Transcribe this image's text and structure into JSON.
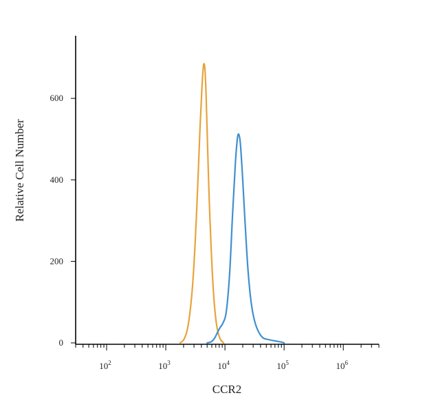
{
  "chart_data": {
    "type": "line",
    "title": "",
    "xlabel": "CCR2",
    "ylabel": "Relative Cell Number",
    "x_scale": "log",
    "xlim": [
      30,
      4000000
    ],
    "ylim": [
      0,
      720
    ],
    "x_ticks": [
      {
        "value": 100,
        "base": "10",
        "exp": "2"
      },
      {
        "value": 1000,
        "base": "10",
        "exp": "3"
      },
      {
        "value": 10000,
        "base": "10",
        "exp": "4"
      },
      {
        "value": 100000,
        "base": "10",
        "exp": "5"
      },
      {
        "value": 1000000,
        "base": "10",
        "exp": "6"
      }
    ],
    "y_ticks": [
      {
        "value": 0,
        "label": "0"
      },
      {
        "value": 200,
        "label": "200"
      },
      {
        "value": 400,
        "label": "400"
      },
      {
        "value": 600,
        "label": "600"
      }
    ],
    "grid": false,
    "legend": "none",
    "series": [
      {
        "color": "#e8a33c",
        "x": [
          1750,
          2050,
          2400,
          2800,
          3150,
          3500,
          3800,
          4100,
          4300,
          4450,
          4600,
          4800,
          5050,
          5400,
          5900,
          6500,
          7300,
          8300,
          9500
        ],
        "y": [
          0,
          10,
          45,
          130,
          250,
          400,
          530,
          630,
          675,
          685,
          670,
          610,
          500,
          360,
          220,
          110,
          40,
          10,
          0
        ]
      },
      {
        "color": "#3f8fd0",
        "x": [
          5000,
          5900,
          6700,
          7500,
          8300,
          9200,
          10500,
          12000,
          13500,
          15000,
          16200,
          17100,
          18200,
          19800,
          21800,
          24500,
          28000,
          33000,
          42000,
          55000,
          70000,
          90000,
          100000
        ],
        "y": [
          0,
          3,
          12,
          26,
          38,
          48,
          75,
          170,
          320,
          440,
          500,
          512,
          490,
          410,
          300,
          180,
          95,
          45,
          15,
          8,
          5,
          2,
          0
        ]
      }
    ]
  }
}
